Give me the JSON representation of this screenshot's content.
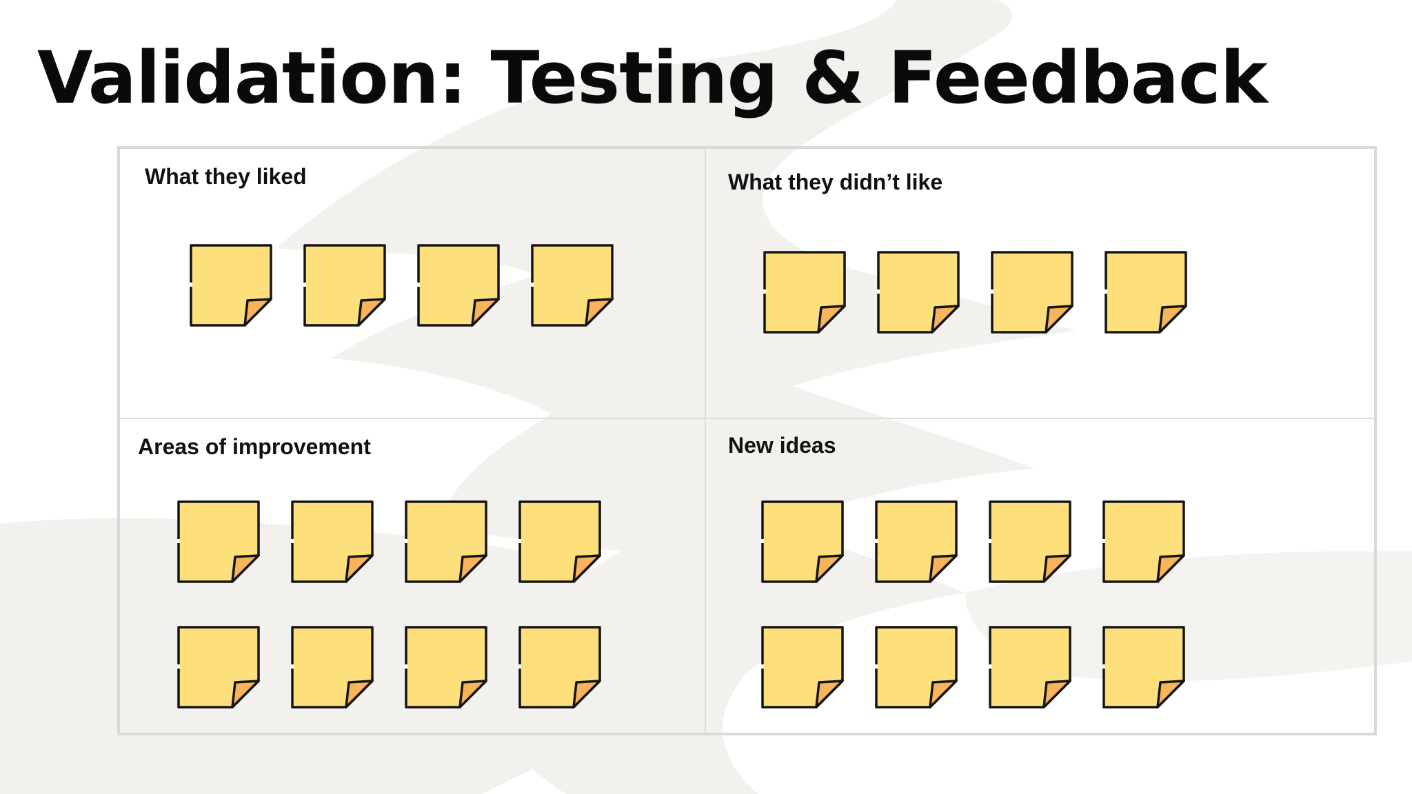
{
  "title": "Validation: Testing & Feedback",
  "colors": {
    "note_fill": "#fde07c",
    "note_fold": "#f7b45a",
    "note_outline": "#141414",
    "board_border": "#d9d9d9",
    "background_wash": "#f2f1ee"
  },
  "quadrants": [
    {
      "label": "What they liked",
      "note_count": 4
    },
    {
      "label": "What they didn’t like",
      "note_count": 4
    },
    {
      "label": "Areas of improvement",
      "note_count": 8
    },
    {
      "label": "New ideas",
      "note_count": 8
    }
  ],
  "note_icon": "sticky-note-icon"
}
